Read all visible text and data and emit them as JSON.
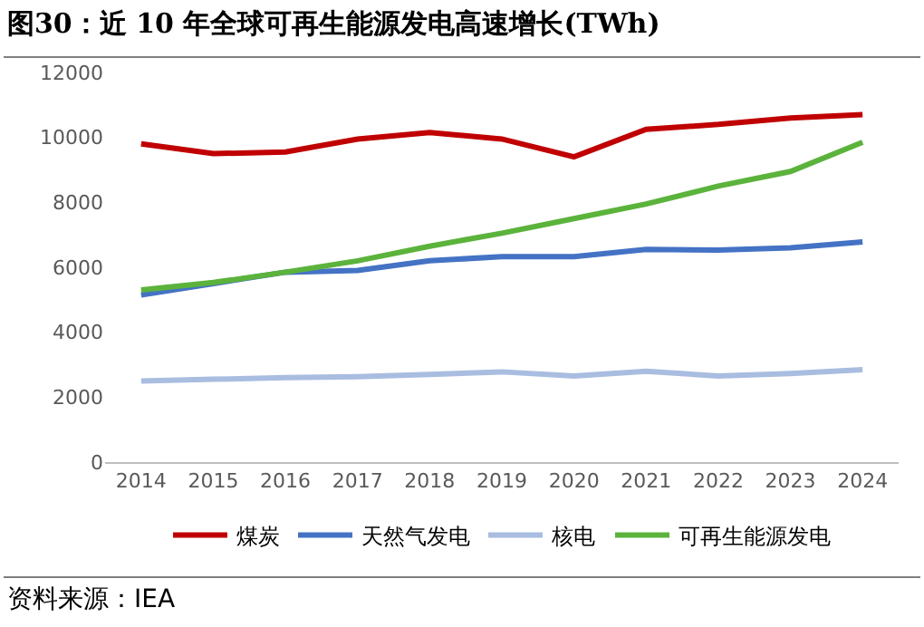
{
  "chart_data": {
    "type": "line",
    "title": "图30：近 10 年全球可再生能源发电高速增长(TWh)",
    "categories": [
      "2014",
      "2015",
      "2016",
      "2017",
      "2018",
      "2019",
      "2020",
      "2021",
      "2022",
      "2023",
      "2024"
    ],
    "series": [
      {
        "name": "煤炭",
        "color": "#c00000",
        "values": [
          9800,
          9500,
          9550,
          9950,
          10150,
          9950,
          9400,
          10250,
          10400,
          10600,
          10700
        ]
      },
      {
        "name": "天然气发电",
        "color": "#4472c4",
        "values": [
          5150,
          5500,
          5850,
          5900,
          6200,
          6330,
          6330,
          6550,
          6530,
          6600,
          6780
        ]
      },
      {
        "name": "核电",
        "color": "#a9bde0",
        "values": [
          2500,
          2550,
          2600,
          2630,
          2700,
          2780,
          2650,
          2800,
          2650,
          2730,
          2850
        ]
      },
      {
        "name": "可再生能源发电",
        "color": "#5bb33c",
        "values": [
          5300,
          5530,
          5850,
          6200,
          6650,
          7050,
          7500,
          7950,
          8500,
          8950,
          9850
        ]
      }
    ],
    "ylim": [
      0,
      12000
    ],
    "yticks": [
      0,
      2000,
      4000,
      6000,
      8000,
      10000,
      12000
    ],
    "grid": false,
    "legend": "bottom",
    "marker": "none",
    "line_style": "solid",
    "annotations": [
      "资料来源：IEA"
    ]
  }
}
